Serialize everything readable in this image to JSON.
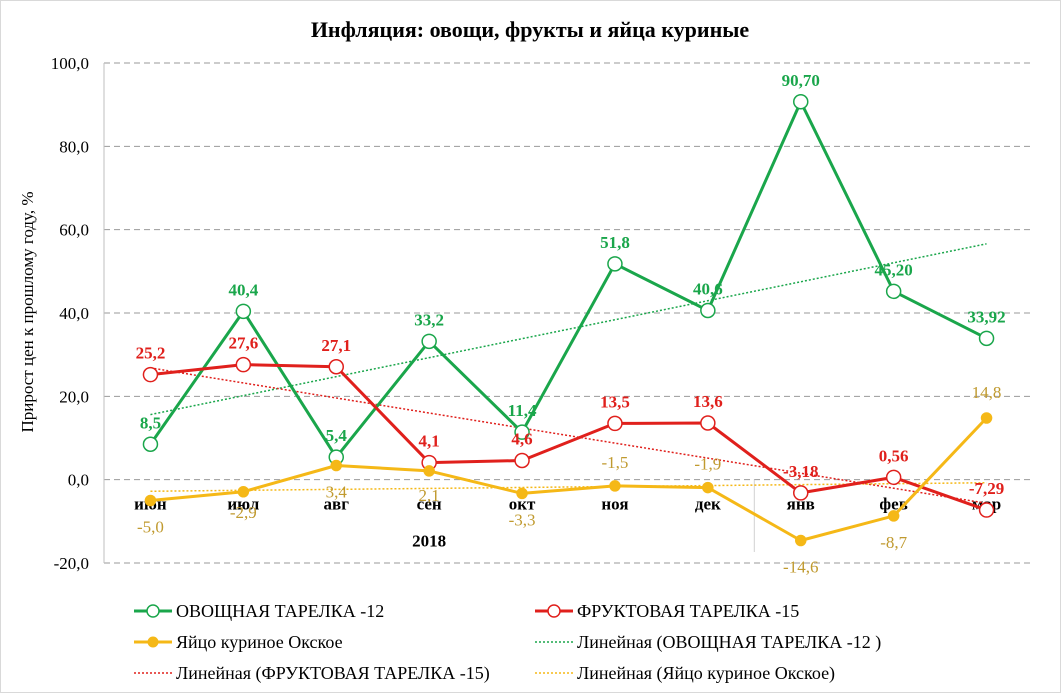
{
  "chart_data": {
    "type": "line",
    "title": "Инфляция: овощи, фрукты и яйца куриные",
    "ylabel": "Прирост цен к прошлому году, %",
    "ylim": [
      -20,
      100
    ],
    "ytick_labels": [
      "100,0",
      "80,0",
      "60,0",
      "40,0",
      "20,0",
      "0,0",
      "-20,0"
    ],
    "ytick_values": [
      100,
      80,
      60,
      40,
      20,
      0,
      -20
    ],
    "grid": "horizontal dashed",
    "categories": [
      "июн",
      "июл",
      "авг",
      "сен",
      "окт",
      "ноя",
      "дек",
      "янв",
      "фев",
      "мар"
    ],
    "year_labels": [
      {
        "label": "2018",
        "span": [
          0,
          6
        ]
      }
    ],
    "legend_position": "bottom",
    "series": [
      {
        "name": "ОВОЩНАЯ ТАРЕЛКА -12",
        "color": "#1aa64b",
        "marker": "open-circle",
        "values": [
          8.5,
          40.4,
          5.4,
          33.2,
          11.4,
          51.8,
          40.6,
          90.7,
          45.2,
          33.92
        ],
        "labels": [
          "8,5",
          "40,4",
          "5,4",
          "33,2",
          "11,4",
          "51,8",
          "40,6",
          "90,70",
          "45,20",
          "33,92"
        ]
      },
      {
        "name": "ФРУКТОВАЯ ТАРЕЛКА -15",
        "color": "#e0201c",
        "marker": "open-circle",
        "values": [
          25.2,
          27.6,
          27.1,
          4.1,
          4.6,
          13.5,
          13.6,
          -3.18,
          0.56,
          -7.29
        ],
        "labels": [
          "25,2",
          "27,6",
          "27,1",
          "4,1",
          "4,6",
          "13,5",
          "13,6",
          "-3,18",
          "0,56",
          "-7,29"
        ]
      },
      {
        "name": "Яйцо куриное Окское",
        "color": "#f5b817",
        "label_color": "#c09a2f",
        "marker": "filled-circle",
        "values": [
          -5.0,
          -2.9,
          3.4,
          2.1,
          -3.3,
          -1.5,
          -1.9,
          -14.6,
          -8.7,
          14.8
        ],
        "labels": [
          "-5,0",
          "-2,9",
          "3,4",
          "2,1",
          "-3,3",
          "-1,5",
          "-1,9",
          "-14,6",
          "-8,7",
          "14,8"
        ]
      }
    ],
    "trendlines": [
      {
        "name": "Линейная (ОВОЩНАЯ ТАРЕЛКА -12 )",
        "color": "#1aa64b",
        "of_series": 0
      },
      {
        "name": "Линейная (ФРУКТОВАЯ ТАРЕЛКА -15)",
        "color": "#e0201c",
        "of_series": 1
      },
      {
        "name": "Линейная (Яйцо куриное Окское)",
        "color": "#f5b817",
        "of_series": 2
      }
    ]
  }
}
